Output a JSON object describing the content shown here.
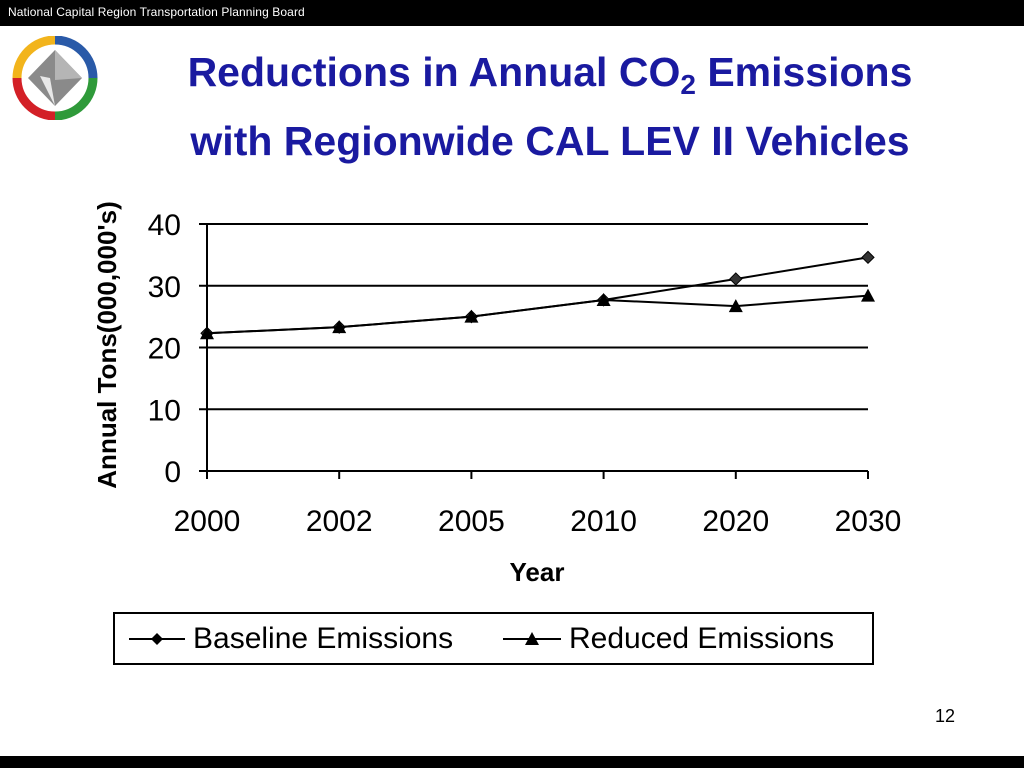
{
  "header": {
    "org_name": "National Capital Region Transportation Planning Board"
  },
  "title": {
    "line1_prefix": "Reductions in Annual CO",
    "line1_sub": "2",
    "line1_suffix": " Emissions",
    "line2": "with Regionwide CAL LEV II Vehicles"
  },
  "footer": {
    "slide_number": "12"
  },
  "colors": {
    "title": "#1a1aa0",
    "logo_gray": "#8a8a8a",
    "logo_yellow": "#f2b41c",
    "logo_red": "#d32027",
    "logo_green": "#2f9a3a",
    "logo_blue": "#2a5aa8"
  },
  "chart_data": {
    "type": "line",
    "title": "",
    "xlabel": "Year",
    "ylabel": "Annual Tons(000,000's)",
    "categories": [
      "2000",
      "2002",
      "2005",
      "2010",
      "2020",
      "2030"
    ],
    "ylim": [
      0,
      40
    ],
    "yticks": [
      "0",
      "10",
      "20",
      "30",
      "40"
    ],
    "grid": true,
    "legend_position": "bottom",
    "series": [
      {
        "name": "Baseline Emissions",
        "marker": "diamond",
        "values": [
          22.3,
          23.3,
          25.0,
          27.7,
          31.1,
          34.6
        ]
      },
      {
        "name": "Reduced Emissions",
        "marker": "triangle",
        "values": [
          22.3,
          23.3,
          25.0,
          27.7,
          26.7,
          28.4
        ]
      }
    ]
  }
}
